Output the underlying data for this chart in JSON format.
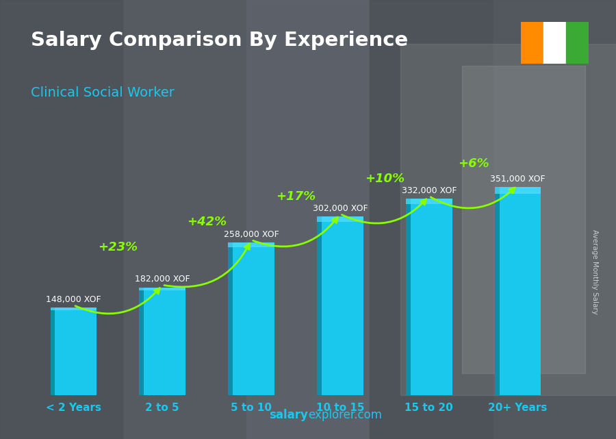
{
  "title": "Salary Comparison By Experience",
  "subtitle": "Clinical Social Worker",
  "categories": [
    "< 2 Years",
    "2 to 5",
    "5 to 10",
    "10 to 15",
    "15 to 20",
    "20+ Years"
  ],
  "values": [
    148000,
    182000,
    258000,
    302000,
    332000,
    351000
  ],
  "value_labels": [
    "148,000 XOF",
    "182,000 XOF",
    "258,000 XOF",
    "302,000 XOF",
    "332,000 XOF",
    "351,000 XOF"
  ],
  "pct_changes": [
    "+23%",
    "+42%",
    "+17%",
    "+10%",
    "+6%"
  ],
  "bar_color_face": "#1AC8ED",
  "bar_color_left": "#0D8FAA",
  "bar_color_top": "#55DDFF",
  "bg_color": "#555a60",
  "title_color": "#FFFFFF",
  "subtitle_color": "#1AC8ED",
  "label_color": "#FFFFFF",
  "xticklabel_color": "#1AC8ED",
  "pct_color": "#88FF00",
  "ylabel_text": "Average Monthly Salary",
  "footer_bold": "salary",
  "footer_rest": "explorer.com",
  "flag_colors": [
    "#FF8C00",
    "#FFFFFF",
    "#3AAA35"
  ],
  "ylim": [
    0,
    430000
  ],
  "arrow_configs": [
    [
      0,
      1,
      "+23%",
      0.58
    ],
    [
      1,
      2,
      "+42%",
      0.68
    ],
    [
      2,
      3,
      "+17%",
      0.78
    ],
    [
      3,
      4,
      "+10%",
      0.85
    ],
    [
      4,
      5,
      "+6%",
      0.91
    ]
  ]
}
